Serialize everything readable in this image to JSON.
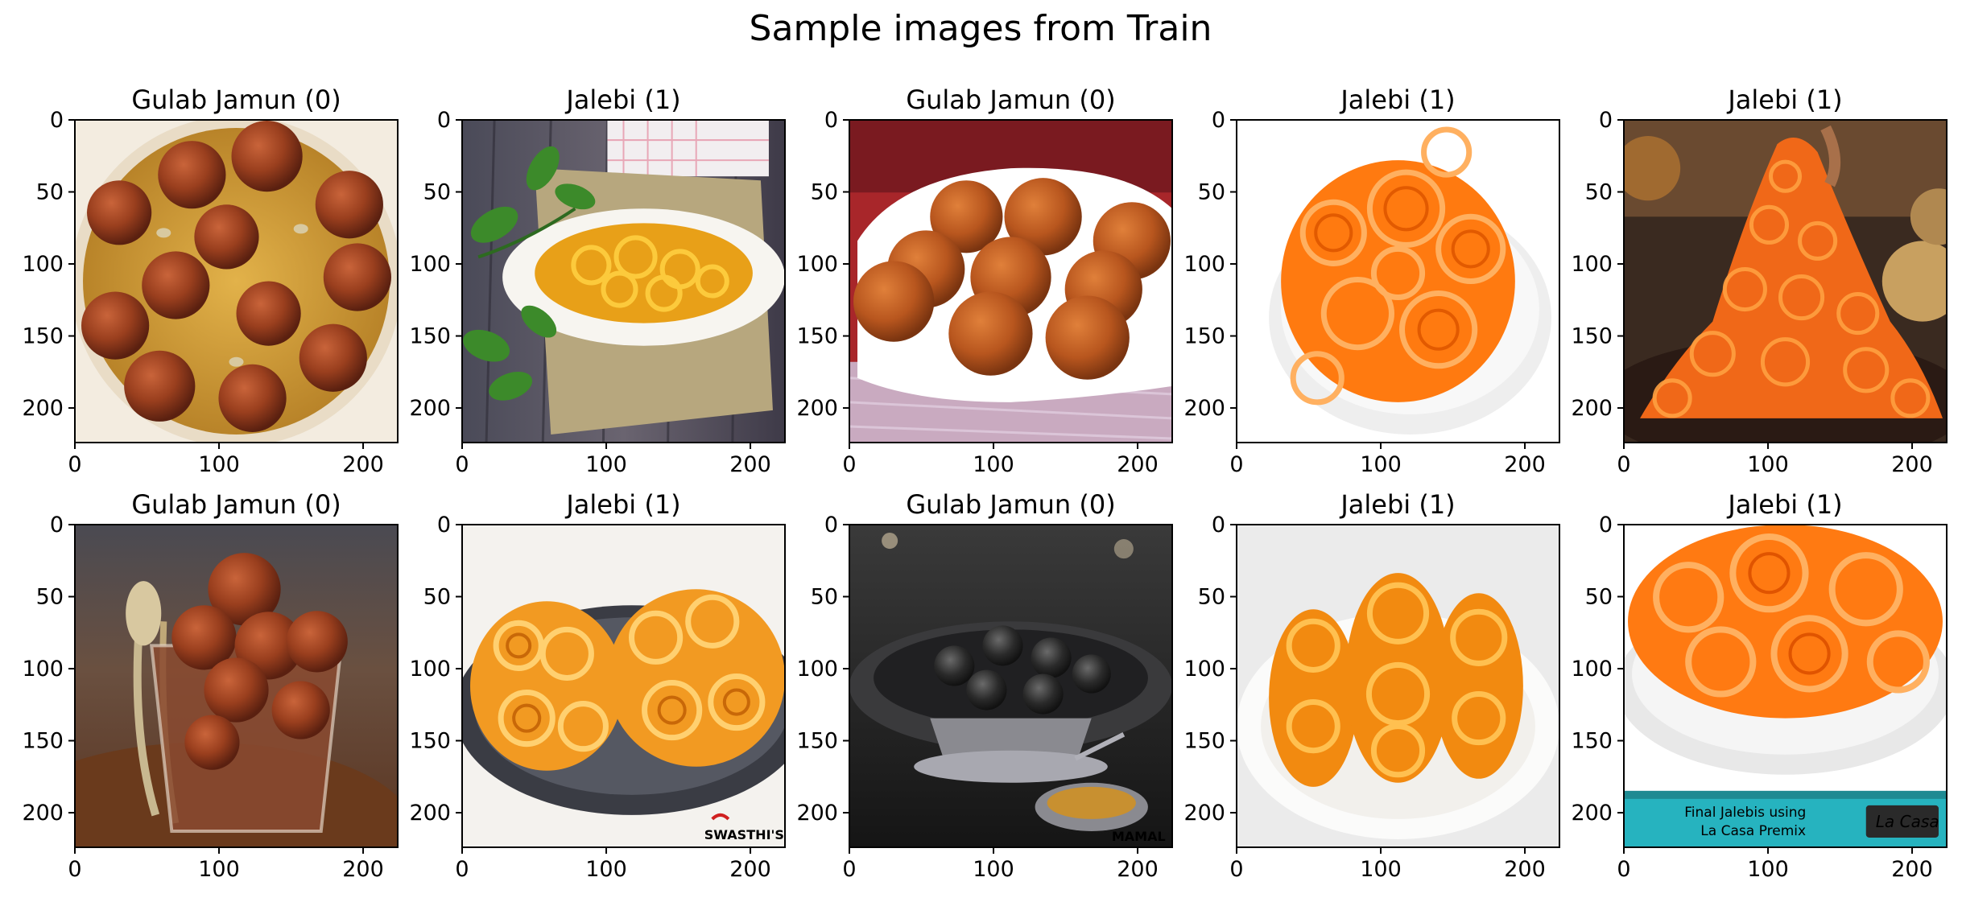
{
  "figure": {
    "title": "Sample images from Train"
  },
  "chart_data": {
    "type": "image-grid",
    "title": "Sample images from Train",
    "rows": 2,
    "cols": 5,
    "xlim": [
      0,
      224
    ],
    "ylim": [
      224,
      0
    ],
    "xticks": [
      0,
      100,
      200
    ],
    "yticks": [
      0,
      50,
      100,
      150,
      200
    ],
    "panels": [
      {
        "title": "Gulab Jamun (0)",
        "image": "gulab-jamun-in-syrup-bowl"
      },
      {
        "title": "Jalebi (1)",
        "image": "jalebi-on-white-plate-burlap"
      },
      {
        "title": "Gulab Jamun (0)",
        "image": "gulab-jamun-white-dish"
      },
      {
        "title": "Jalebi (1)",
        "image": "jalebi-white-bowl"
      },
      {
        "title": "Jalebi (1)",
        "image": "jalebi-heap-on-pan"
      },
      {
        "title": "Gulab Jamun (0)",
        "image": "gulab-jamun-glass-cup-spoons"
      },
      {
        "title": "Jalebi (1)",
        "image": "jalebi-on-dark-plate",
        "watermark": "SWASTHI'S RECIPES"
      },
      {
        "title": "Gulab Jamun (0)",
        "image": "black-gulab-jamun-on-dark-stand",
        "watermark": "MAMAL"
      },
      {
        "title": "Jalebi (1)",
        "image": "jalebi-stacked-on-plate"
      },
      {
        "title": "Jalebi (1)",
        "image": "jalebi-bowl-with-banner",
        "banner": "Final Jalebis using La Casa Premix",
        "logo": "La Casa"
      }
    ]
  },
  "colors": {
    "syrup": "#d9a63a",
    "jamun_brown": "#8a3a1c",
    "jalebi_orange": "#f07a18",
    "dark_plate": "#2b2b2b",
    "banner_teal": "#26b3bf"
  }
}
